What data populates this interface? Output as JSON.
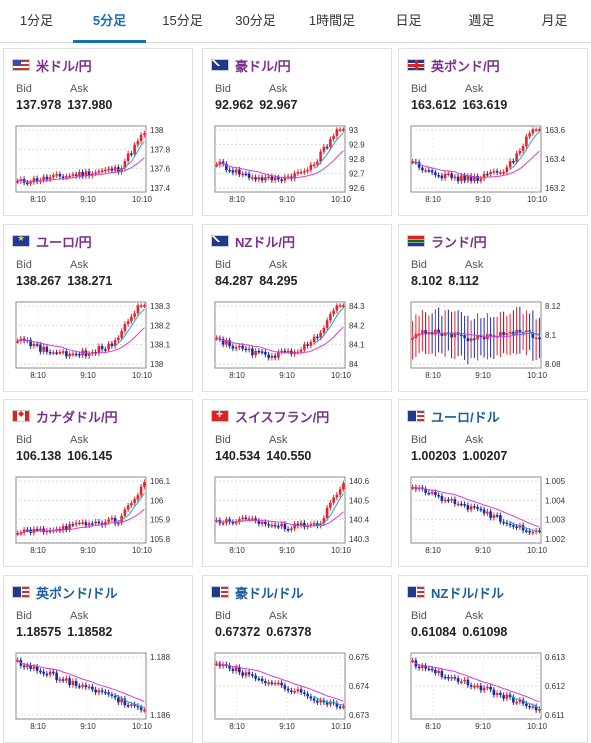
{
  "tabs": [
    {
      "label": "1分足",
      "active": false
    },
    {
      "label": "5分足",
      "active": true
    },
    {
      "label": "15分足",
      "active": false
    },
    {
      "label": "30分足",
      "active": false
    },
    {
      "label": "1時間足",
      "active": false
    },
    {
      "label": "日足",
      "active": false
    },
    {
      "label": "週足",
      "active": false
    },
    {
      "label": "月足",
      "active": false
    }
  ],
  "labels": {
    "bid": "Bid",
    "ask": "Ask"
  },
  "time_labels": [
    "8:10",
    "9:10",
    "10:10"
  ],
  "colors": {
    "up": "#e8222a",
    "down": "#1a2aa6",
    "ma_fast": "#29a3d8",
    "ma_slow": "#d43fd8",
    "title_purple": "#7b2f8a",
    "title_blue": "#1a5d9c",
    "accent": "#1a6fb5"
  },
  "cards": [
    {
      "pair": "米ドル/円",
      "flag": "us",
      "title_color": "purple",
      "bid": "137.978",
      "ask": "137.980",
      "yticks": [
        "138",
        "137.8",
        "137.6",
        "137.4"
      ],
      "trend": "up"
    },
    {
      "pair": "豪ドル/円",
      "flag": "au",
      "title_color": "purple",
      "bid": "92.962",
      "ask": "92.967",
      "yticks": [
        "93",
        "92.9",
        "92.8",
        "92.7",
        "92.6"
      ],
      "trend": "dipup"
    },
    {
      "pair": "英ポンド/円",
      "flag": "gb",
      "title_color": "purple",
      "bid": "163.612",
      "ask": "163.619",
      "yticks": [
        "163.6",
        "163.4",
        "163.2"
      ],
      "trend": "dipup"
    },
    {
      "pair": "ユーロ/円",
      "flag": "eu",
      "title_color": "purple",
      "bid": "138.267",
      "ask": "138.271",
      "yticks": [
        "138.3",
        "138.2",
        "138.1",
        "138"
      ],
      "trend": "dipup"
    },
    {
      "pair": "NZドル/円",
      "flag": "nz",
      "title_color": "purple",
      "bid": "84.287",
      "ask": "84.295",
      "yticks": [
        "84.3",
        "84.2",
        "84.1",
        "84"
      ],
      "trend": "dipup"
    },
    {
      "pair": "ランド/円",
      "flag": "za",
      "title_color": "purple",
      "bid": "8.102",
      "ask": "8.112",
      "yticks": [
        "8.12",
        "8.1",
        "8.08"
      ],
      "trend": "volatile"
    },
    {
      "pair": "カナダドル/円",
      "flag": "ca",
      "title_color": "purple",
      "bid": "106.138",
      "ask": "106.145",
      "yticks": [
        "106.1",
        "106",
        "105.9",
        "105.8"
      ],
      "trend": "up"
    },
    {
      "pair": "スイスフラン/円",
      "flag": "ch",
      "title_color": "purple",
      "bid": "140.534",
      "ask": "140.550",
      "yticks": [
        "140.6",
        "140.5",
        "140.4",
        "140.3"
      ],
      "trend": "lateup"
    },
    {
      "pair": "ユーロ/ドル",
      "flag": "euus",
      "title_color": "blue",
      "bid": "1.00203",
      "ask": "1.00207",
      "yticks": [
        "1.005",
        "1.004",
        "1.003",
        "1.002"
      ],
      "trend": "down"
    },
    {
      "pair": "英ポンド/ドル",
      "flag": "gbus",
      "title_color": "blue",
      "bid": "1.18575",
      "ask": "1.18582",
      "yticks": [
        "1.188",
        "1.186"
      ],
      "trend": "down"
    },
    {
      "pair": "豪ドル/ドル",
      "flag": "auus",
      "title_color": "blue",
      "bid": "0.67372",
      "ask": "0.67378",
      "yticks": [
        "0.675",
        "0.674",
        "0.673"
      ],
      "trend": "down"
    },
    {
      "pair": "NZドル/ドル",
      "flag": "nzus",
      "title_color": "blue",
      "bid": "0.61084",
      "ask": "0.61098",
      "yticks": [
        "0.613",
        "0.612",
        "0.611"
      ],
      "trend": "down"
    }
  ]
}
